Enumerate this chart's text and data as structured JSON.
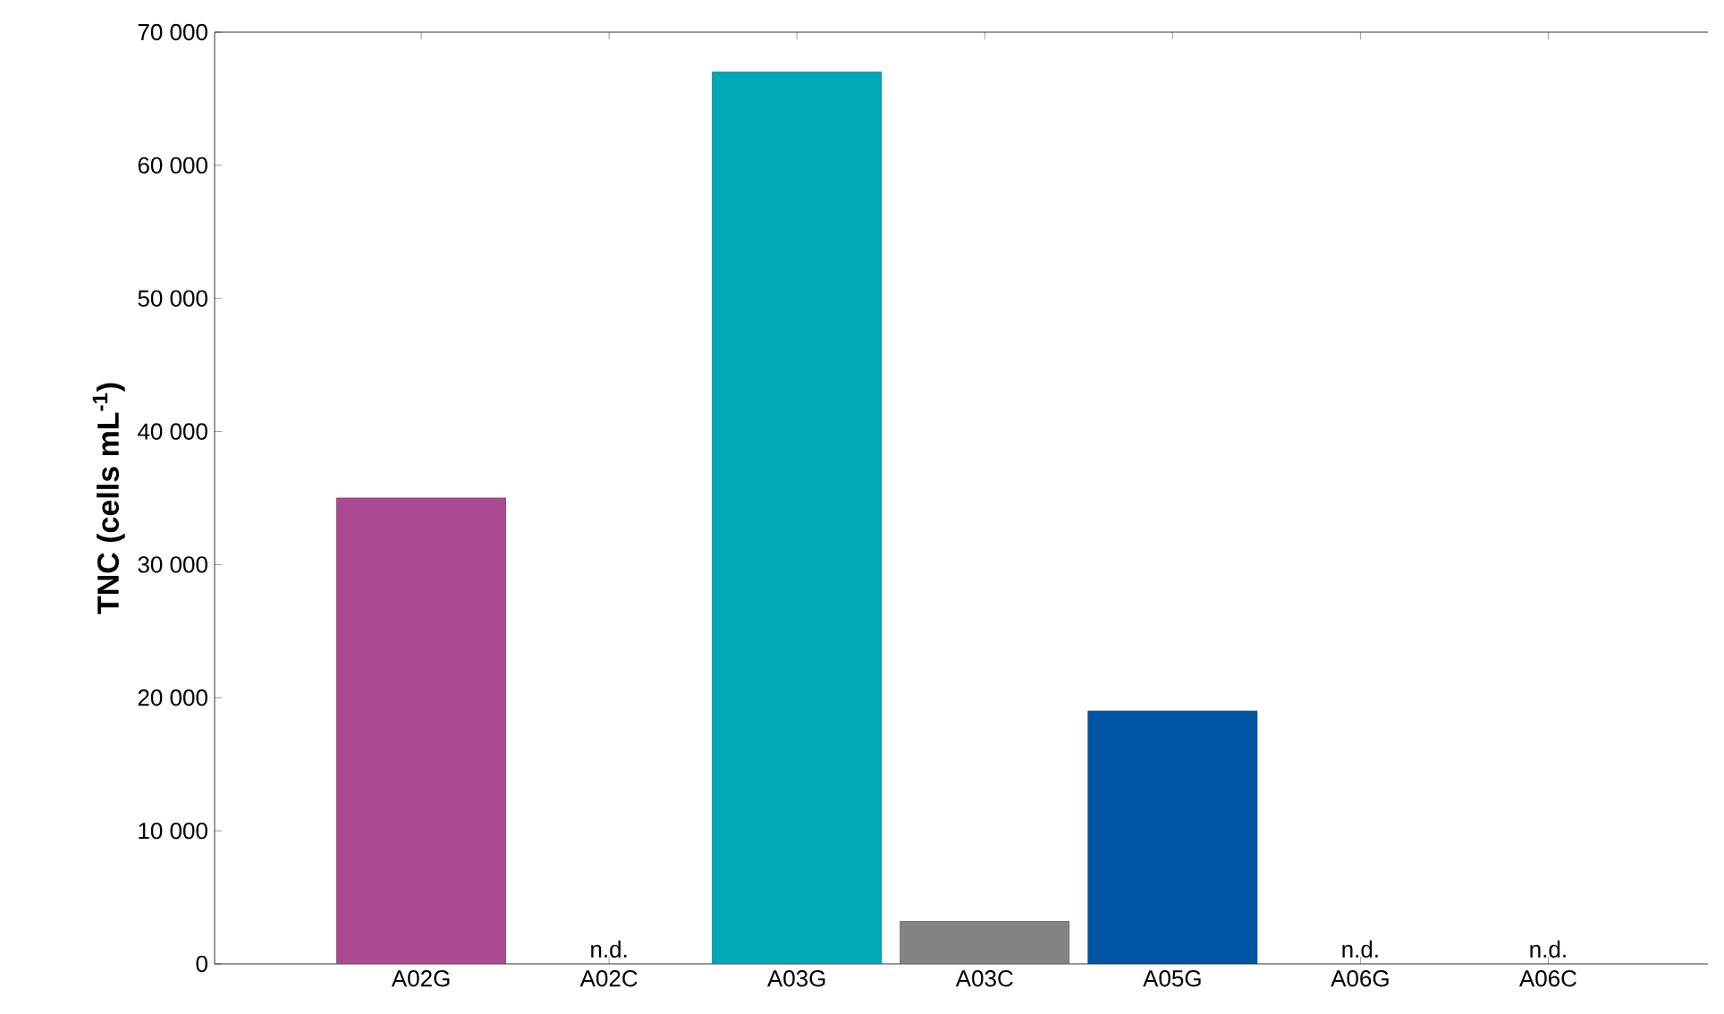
{
  "chart_data": {
    "type": "bar",
    "ylabel": "TNC (cells mL$^{-1}$)",
    "categories": [
      "A02G",
      "A02C",
      "A03G",
      "A03C",
      "A05G",
      "A06G",
      "A06C"
    ],
    "values": [
      35000,
      null,
      67000,
      3200,
      19000,
      null,
      null
    ],
    "colors": [
      "#ab4a93",
      "#ab4a93",
      "#00a8b8",
      "#838383",
      "#0055a4",
      "#0055a4",
      "#0055a4"
    ],
    "value_labels": [
      null,
      "n.d.",
      null,
      null,
      null,
      "n.d.",
      "n.d."
    ],
    "ylim": [
      0,
      70000
    ],
    "yticks": [
      {
        "value": 0,
        "label": "0"
      },
      {
        "value": 10000,
        "label": "10 000"
      },
      {
        "value": 20000,
        "label": "20 000"
      },
      {
        "value": 30000,
        "label": "30 000"
      },
      {
        "value": 40000,
        "label": "40 000"
      },
      {
        "value": 50000,
        "label": "50 000"
      },
      {
        "value": 60000,
        "label": "60 000"
      },
      {
        "value": 70000,
        "label": "70 000"
      }
    ],
    "grid": false
  }
}
